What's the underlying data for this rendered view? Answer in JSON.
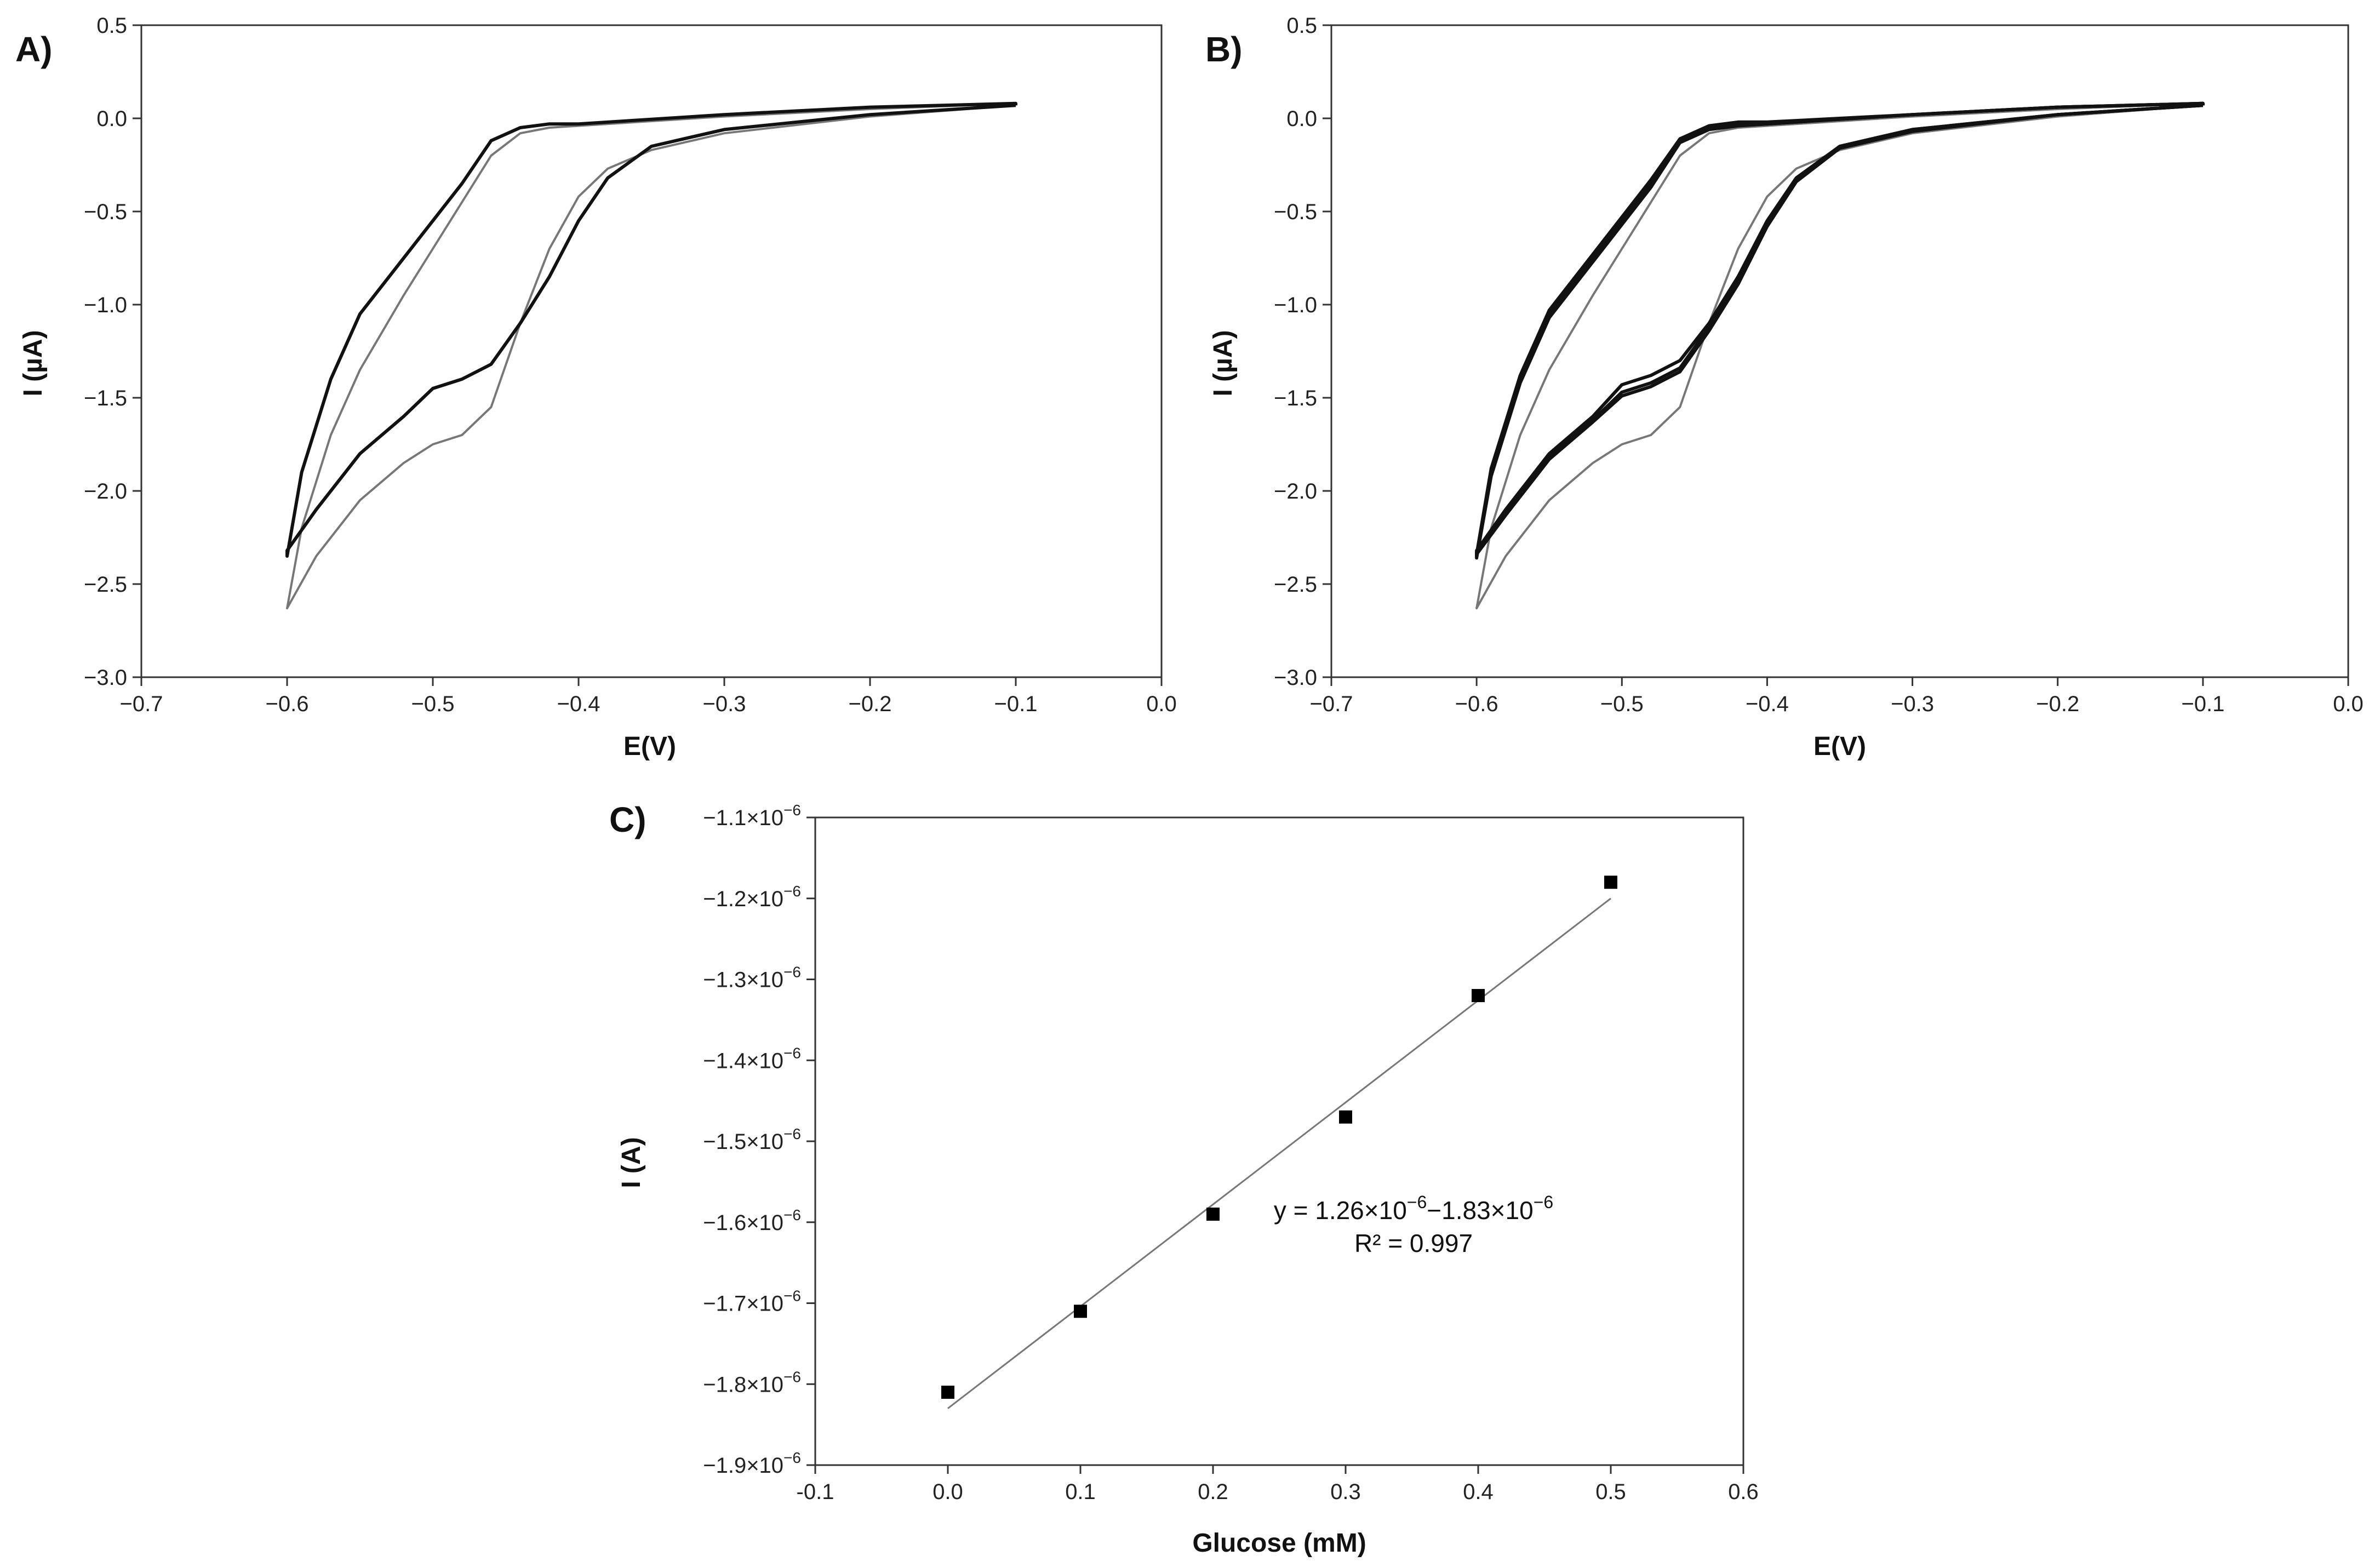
{
  "figure": {
    "panels": [
      "A)",
      "B)",
      "C)"
    ]
  },
  "chart_data": [
    {
      "id": "A",
      "type": "line",
      "panel_label": "A)",
      "xlabel": "E(V)",
      "ylabel": "I (µA)",
      "xlim": [
        -0.7,
        0.0
      ],
      "ylim": [
        -3.0,
        0.5
      ],
      "xticks": [
        -0.7,
        -0.6,
        -0.5,
        -0.4,
        -0.3,
        -0.2,
        -0.1,
        0.0
      ],
      "yticks": [
        0.5,
        0.0,
        -0.5,
        -1.0,
        -1.5,
        -2.0,
        -2.5,
        -3.0
      ],
      "xtick_labels": [
        "−0.7",
        "−0.6",
        "−0.5",
        "−0.4",
        "−0.3",
        "−0.2",
        "−0.1",
        "0.0"
      ],
      "ytick_labels": [
        "0.5",
        "0.0",
        "−0.5",
        "−1.0",
        "−1.5",
        "−2.0",
        "−2.5",
        "−3.0"
      ],
      "series": [
        {
          "name": "gray",
          "color": "#777777",
          "x": [
            -0.1,
            -0.2,
            -0.3,
            -0.35,
            -0.38,
            -0.4,
            -0.42,
            -0.44,
            -0.46,
            -0.48,
            -0.5,
            -0.52,
            -0.55,
            -0.58,
            -0.6,
            -0.59,
            -0.57,
            -0.55,
            -0.52,
            -0.5,
            -0.48,
            -0.46,
            -0.44,
            -0.42,
            -0.4,
            -0.3,
            -0.2,
            -0.1
          ],
          "y": [
            0.07,
            0.01,
            -0.08,
            -0.17,
            -0.27,
            -0.42,
            -0.7,
            -1.1,
            -1.55,
            -1.7,
            -1.75,
            -1.85,
            -2.05,
            -2.35,
            -2.63,
            -2.2,
            -1.7,
            -1.35,
            -0.95,
            -0.7,
            -0.45,
            -0.2,
            -0.08,
            -0.05,
            -0.04,
            0.01,
            0.05,
            0.08
          ]
        },
        {
          "name": "black",
          "color": "#111111",
          "x": [
            -0.1,
            -0.2,
            -0.3,
            -0.35,
            -0.38,
            -0.4,
            -0.42,
            -0.44,
            -0.46,
            -0.48,
            -0.5,
            -0.52,
            -0.55,
            -0.58,
            -0.6,
            -0.6,
            -0.59,
            -0.57,
            -0.55,
            -0.52,
            -0.5,
            -0.48,
            -0.46,
            -0.44,
            -0.42,
            -0.4,
            -0.3,
            -0.2,
            -0.1
          ],
          "y": [
            0.07,
            0.02,
            -0.06,
            -0.15,
            -0.32,
            -0.55,
            -0.85,
            -1.1,
            -1.32,
            -1.4,
            -1.45,
            -1.6,
            -1.8,
            -2.1,
            -2.32,
            -2.35,
            -1.9,
            -1.4,
            -1.05,
            -0.75,
            -0.55,
            -0.35,
            -0.12,
            -0.05,
            -0.03,
            -0.03,
            0.02,
            0.06,
            0.08
          ]
        }
      ]
    },
    {
      "id": "B",
      "type": "line",
      "panel_label": "B)",
      "xlabel": "E(V)",
      "ylabel": "I (µA)",
      "xlim": [
        -0.7,
        0.0
      ],
      "ylim": [
        -3.0,
        0.5
      ],
      "xticks": [
        -0.7,
        -0.6,
        -0.5,
        -0.4,
        -0.3,
        -0.2,
        -0.1,
        0.0
      ],
      "yticks": [
        0.5,
        0.0,
        -0.5,
        -1.0,
        -1.5,
        -2.0,
        -2.5,
        -3.0
      ],
      "xtick_labels": [
        "−0.7",
        "−0.6",
        "−0.5",
        "−0.4",
        "−0.3",
        "−0.2",
        "−0.1",
        "0.0"
      ],
      "ytick_labels": [
        "0.5",
        "0.0",
        "−0.5",
        "−1.0",
        "−1.5",
        "−2.0",
        "−2.5",
        "−3.0"
      ],
      "series": [
        {
          "name": "gray",
          "color": "#777777",
          "x": [
            -0.1,
            -0.2,
            -0.3,
            -0.35,
            -0.38,
            -0.4,
            -0.42,
            -0.44,
            -0.46,
            -0.48,
            -0.5,
            -0.52,
            -0.55,
            -0.58,
            -0.6,
            -0.59,
            -0.57,
            -0.55,
            -0.52,
            -0.5,
            -0.48,
            -0.46,
            -0.44,
            -0.42,
            -0.4,
            -0.3,
            -0.2,
            -0.1
          ],
          "y": [
            0.07,
            0.01,
            -0.08,
            -0.17,
            -0.27,
            -0.42,
            -0.7,
            -1.1,
            -1.55,
            -1.7,
            -1.75,
            -1.85,
            -2.05,
            -2.35,
            -2.63,
            -2.2,
            -1.7,
            -1.35,
            -0.95,
            -0.7,
            -0.45,
            -0.2,
            -0.08,
            -0.05,
            -0.04,
            0.01,
            0.05,
            0.08
          ]
        },
        {
          "name": "black-1",
          "color": "#111111",
          "x": [
            -0.1,
            -0.2,
            -0.3,
            -0.35,
            -0.38,
            -0.4,
            -0.42,
            -0.44,
            -0.46,
            -0.48,
            -0.5,
            -0.52,
            -0.55,
            -0.58,
            -0.6,
            -0.6,
            -0.59,
            -0.57,
            -0.55,
            -0.52,
            -0.5,
            -0.48,
            -0.46,
            -0.44,
            -0.42,
            -0.4,
            -0.3,
            -0.2,
            -0.1
          ],
          "y": [
            0.07,
            0.02,
            -0.06,
            -0.15,
            -0.32,
            -0.55,
            -0.85,
            -1.1,
            -1.3,
            -1.38,
            -1.43,
            -1.6,
            -1.8,
            -2.1,
            -2.32,
            -2.35,
            -1.9,
            -1.4,
            -1.05,
            -0.75,
            -0.55,
            -0.35,
            -0.12,
            -0.05,
            -0.03,
            -0.03,
            0.02,
            0.06,
            0.08
          ]
        },
        {
          "name": "black-2",
          "color": "#111111",
          "x": [
            -0.1,
            -0.2,
            -0.3,
            -0.35,
            -0.38,
            -0.4,
            -0.42,
            -0.44,
            -0.46,
            -0.48,
            -0.5,
            -0.52,
            -0.55,
            -0.58,
            -0.6,
            -0.6,
            -0.59,
            -0.57,
            -0.55,
            -0.52,
            -0.5,
            -0.48,
            -0.46,
            -0.44,
            -0.42,
            -0.4,
            -0.3,
            -0.2,
            -0.1
          ],
          "y": [
            0.07,
            0.02,
            -0.06,
            -0.15,
            -0.33,
            -0.57,
            -0.87,
            -1.12,
            -1.34,
            -1.42,
            -1.47,
            -1.62,
            -1.82,
            -2.12,
            -2.33,
            -2.36,
            -1.92,
            -1.42,
            -1.07,
            -0.77,
            -0.57,
            -0.37,
            -0.13,
            -0.06,
            -0.04,
            -0.03,
            0.02,
            0.06,
            0.08
          ]
        },
        {
          "name": "black-3",
          "color": "#111111",
          "x": [
            -0.1,
            -0.2,
            -0.3,
            -0.35,
            -0.38,
            -0.4,
            -0.42,
            -0.44,
            -0.46,
            -0.48,
            -0.5,
            -0.52,
            -0.55,
            -0.58,
            -0.6,
            -0.6,
            -0.59,
            -0.57,
            -0.55,
            -0.52,
            -0.5,
            -0.48,
            -0.46,
            -0.44,
            -0.42,
            -0.4,
            -0.3,
            -0.2,
            -0.1
          ],
          "y": [
            0.07,
            0.02,
            -0.07,
            -0.16,
            -0.34,
            -0.58,
            -0.89,
            -1.14,
            -1.36,
            -1.44,
            -1.49,
            -1.63,
            -1.83,
            -2.13,
            -2.34,
            -2.34,
            -1.88,
            -1.38,
            -1.03,
            -0.73,
            -0.53,
            -0.33,
            -0.11,
            -0.04,
            -0.02,
            -0.02,
            0.02,
            0.06,
            0.08
          ]
        }
      ]
    },
    {
      "id": "C",
      "type": "scatter",
      "panel_label": "C)",
      "xlabel": "Glucose (mM)",
      "ylabel": "I  (A)",
      "xlim": [
        -0.1,
        0.6
      ],
      "ylim": [
        -1.9e-06,
        -1.1e-06
      ],
      "xticks": [
        -0.1,
        0.0,
        0.1,
        0.2,
        0.3,
        0.4,
        0.5,
        0.6
      ],
      "yticks": [
        -1.1e-06,
        -1.2e-06,
        -1.3e-06,
        -1.4e-06,
        -1.5e-06,
        -1.6e-06,
        -1.7e-06,
        -1.8e-06,
        -1.9e-06
      ],
      "xtick_labels": [
        "-0.1",
        "0.0",
        "0.1",
        "0.2",
        "0.3",
        "0.4",
        "0.5",
        "0.6"
      ],
      "ytick_labels": [
        "−1.1×10",
        "−1.2×10",
        "−1.3×10",
        "−1.4×10",
        "−1.5×10",
        "−1.6×10",
        "−1.7×10",
        "−1.8×10",
        "−1.9×10"
      ],
      "ytick_exponent": "−6",
      "points": {
        "x": [
          0.0,
          0.1,
          0.2,
          0.3,
          0.4,
          0.5
        ],
        "y": [
          -1.81e-06,
          -1.71e-06,
          -1.59e-06,
          -1.47e-06,
          -1.32e-06,
          -1.18e-06
        ]
      },
      "fit": {
        "x": [
          0.0,
          0.5
        ],
        "y": [
          -1.83e-06,
          -1.2e-06
        ],
        "color": "#777777"
      },
      "equation_parts": [
        "y = 1.26×10",
        "−6",
        "−1.83×10",
        "−6"
      ],
      "r_squared": "R² = 0.997"
    }
  ]
}
